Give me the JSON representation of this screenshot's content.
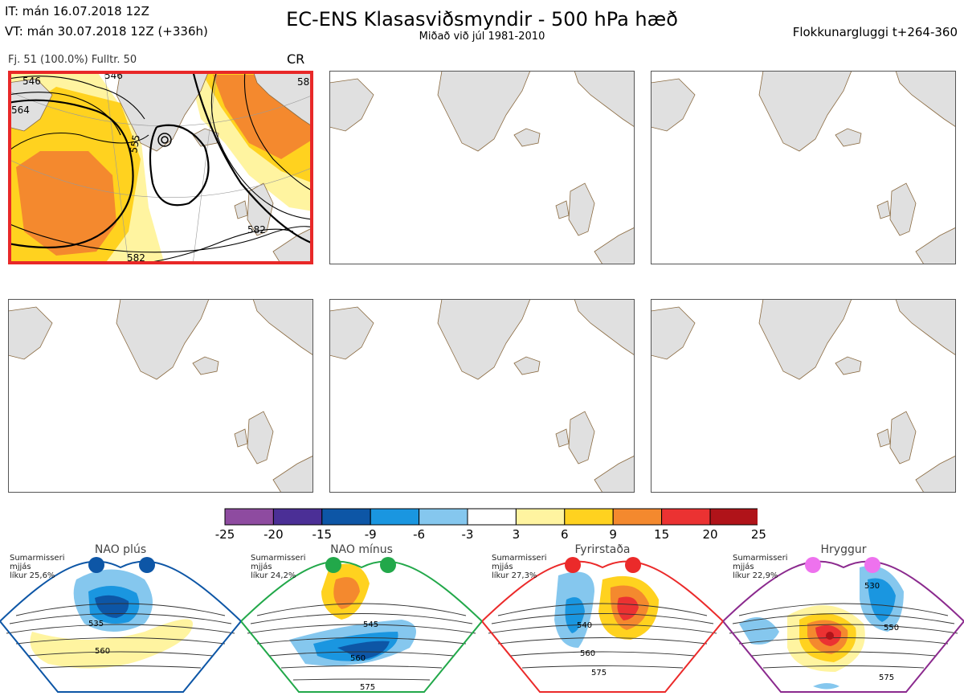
{
  "header": {
    "it_line": "IT: mán 16.07.2018 12Z",
    "vt_line": "VT: mán 30.07.2018 12Z  (+336h)",
    "title": "EC-ENS Klasasviðsmyndir - 500 hPa hæð",
    "subtitle": "Miðað við júl 1981-2010",
    "window": "Flokkunargluggi t+264-360"
  },
  "panel1": {
    "info": "Fj. 51 (100.0%)   Fulltr. 50",
    "code": "CR",
    "contour_labels": [
      "546",
      "564",
      "546",
      "58",
      "555",
      "582",
      "582"
    ]
  },
  "colorbar": {
    "ticks": [
      "-25",
      "-20",
      "-15",
      "-9",
      "-6",
      "-3",
      "3",
      "6",
      "9",
      "15",
      "20",
      "25"
    ],
    "colors": [
      "#8e4ba0",
      "#4b2f96",
      "#0d56a6",
      "#1a96e0",
      "#85c7ee",
      "#ffffff",
      "#fff4a0",
      "#ffd21f",
      "#f4892e",
      "#eb3232",
      "#b01319"
    ]
  },
  "regimes": [
    {
      "name": "NAO plús",
      "info1": "Sumarmisseri",
      "info2": "mjjás",
      "info3": "líkur 25,6%",
      "color": "#0d56a6",
      "labels": [
        "535",
        "560"
      ]
    },
    {
      "name": "NAO mínus",
      "info1": "Sumarmisseri",
      "info2": "mjjás",
      "info3": "líkur 24,2%",
      "color": "#22a84a",
      "labels": [
        "545",
        "560",
        "575"
      ]
    },
    {
      "name": "Fyrirstaða",
      "info1": "Sumarmisseri",
      "info2": "mjjás",
      "info3": "líkur 27,3%",
      "color": "#eb2a2a",
      "labels": [
        "540",
        "560",
        "575"
      ]
    },
    {
      "name": "Hryggur",
      "info1": "Sumarmisseri",
      "info2": "mjjás",
      "info3": "líkur 22,9%",
      "color": "#8b2a8e",
      "labels": [
        "530",
        "550",
        "575"
      ]
    }
  ]
}
